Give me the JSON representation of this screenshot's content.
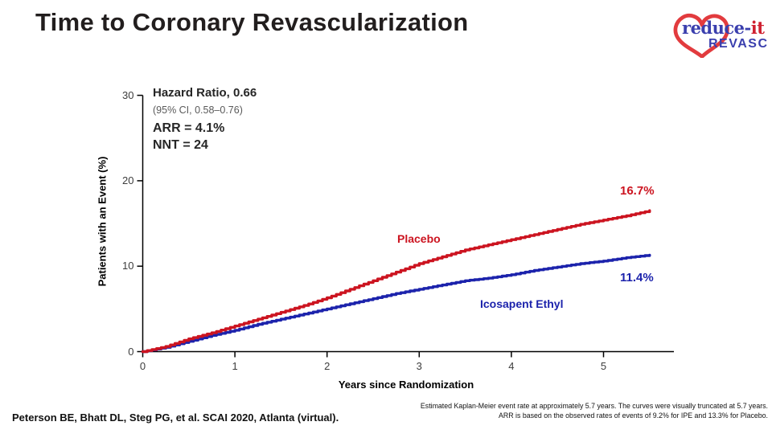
{
  "slide": {
    "title": "Time to Coronary Revascularization",
    "background": "#ffffff"
  },
  "logo": {
    "word_part1": "reduce-",
    "word_part2": "it",
    "word_line2": "REVASC",
    "heart_color": "#e23b3e",
    "blue": "#3a3fae",
    "red": "#cf2030"
  },
  "chart_data": {
    "type": "line",
    "subtype": "kaplan-meier-step",
    "title": "",
    "xlabel": "Years since Randomization",
    "ylabel": "Patients with an Event (%)",
    "xlim": [
      0,
      5.75
    ],
    "ylim": [
      0,
      30
    ],
    "xticks": [
      0,
      1,
      2,
      3,
      4,
      5
    ],
    "yticks": [
      0,
      10,
      20,
      30
    ],
    "grid": false,
    "legend_position": "inline-curve-labels",
    "annotations": {
      "hazard_ratio": "Hazard Ratio, 0.66",
      "ci": "(95% CI, 0.58–0.76)",
      "arr": "ARR = 4.1%",
      "nnt": "NNT = 24"
    },
    "series": [
      {
        "name": "Placebo",
        "color": "#cc1420",
        "end_label": "16.7%",
        "x": [
          0,
          0.25,
          0.5,
          0.75,
          1,
          1.25,
          1.5,
          1.75,
          2,
          2.25,
          2.5,
          2.75,
          3,
          3.25,
          3.5,
          3.75,
          4,
          4.25,
          4.5,
          4.75,
          5,
          5.25,
          5.5
        ],
        "y": [
          0,
          0.6,
          1.5,
          2.2,
          3.0,
          3.8,
          4.6,
          5.4,
          6.3,
          7.3,
          8.3,
          9.3,
          10.3,
          11.1,
          11.9,
          12.5,
          13.1,
          13.7,
          14.3,
          14.9,
          15.4,
          15.9,
          16.5
        ]
      },
      {
        "name": "Icosapent Ethyl",
        "color": "#1c23ac",
        "end_label": "11.4%",
        "x": [
          0,
          0.25,
          0.5,
          0.75,
          1,
          1.25,
          1.5,
          1.75,
          2,
          2.25,
          2.5,
          2.75,
          3,
          3.25,
          3.5,
          3.75,
          4,
          4.25,
          4.5,
          4.75,
          5,
          5.25,
          5.5
        ],
        "y": [
          0,
          0.5,
          1.2,
          1.9,
          2.5,
          3.2,
          3.8,
          4.4,
          5.0,
          5.6,
          6.2,
          6.8,
          7.3,
          7.8,
          8.3,
          8.6,
          9.0,
          9.5,
          9.9,
          10.3,
          10.6,
          11.0,
          11.3
        ]
      }
    ]
  },
  "footer": {
    "citation": "Peterson BE, Bhatt DL, Steg PG, et al. SCAI 2020, Atlanta (virtual).",
    "note_line1": "Estimated Kaplan-Meier event rate at approximately 5.7 years. The curves were visually truncated at 5.7 years.",
    "note_line2": "ARR is based on the observed rates of events of 9.2% for IPE and 13.3% for Placebo."
  }
}
